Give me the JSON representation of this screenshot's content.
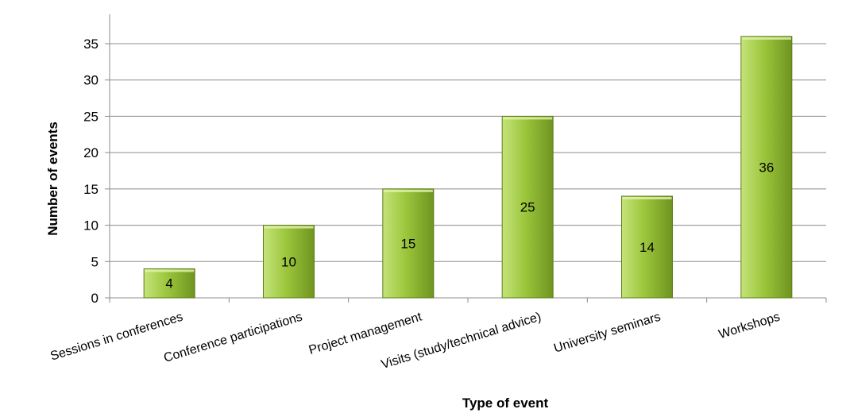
{
  "chart_data": {
    "type": "bar",
    "title": "",
    "xlabel": "Type of event",
    "ylabel": "Number of events",
    "categories": [
      "Sessions in conferences",
      "Conference participations",
      "Project management",
      "Visits (study/technical advice)",
      "University seminars",
      "Workshops"
    ],
    "values": [
      4,
      10,
      15,
      25,
      14,
      36
    ],
    "ylim": [
      0,
      35
    ],
    "yticks": [
      0,
      5,
      10,
      15,
      20,
      25,
      30,
      35
    ],
    "grid": true,
    "legend": "none",
    "data_labels": true,
    "colors": {
      "bar_light": "#c5e37a",
      "bar_mid": "#9cc63c",
      "bar_dark": "#6f9420",
      "bar_stroke": "#5c7d18",
      "grid": "#8c8c8c",
      "axis": "#8c8c8c"
    }
  }
}
